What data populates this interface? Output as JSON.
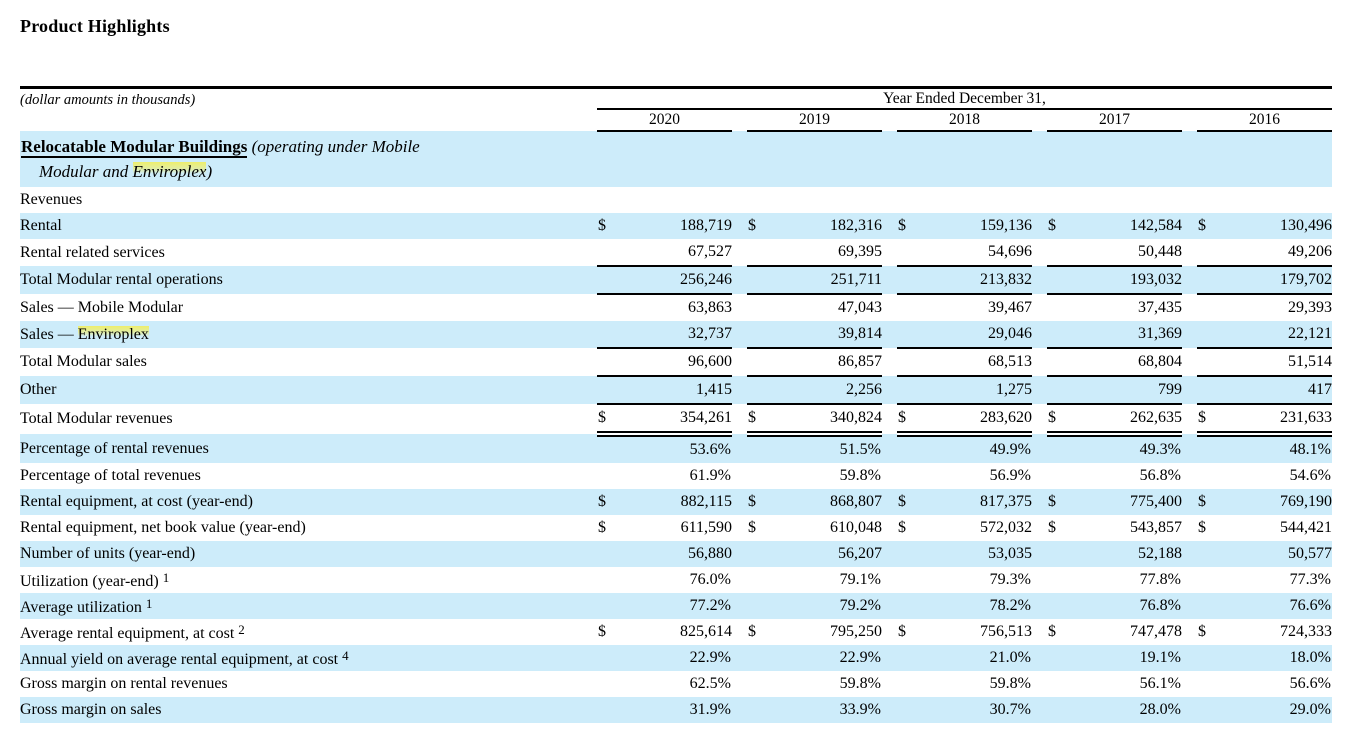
{
  "page": {
    "title": "Product Highlights"
  },
  "colors": {
    "row_shading": "#cdecfa",
    "rule": "#000000",
    "highlight": "#f0ee64"
  },
  "table": {
    "note": "(dollar amounts in thousands)",
    "span_header": "Year Ended December 31,",
    "years": [
      "2020",
      "2019",
      "2018",
      "2017",
      "2016"
    ],
    "section": {
      "bold": "Relocatable Modular Buildings",
      "italic1": " (operating under Mobile",
      "italic2_pre": "Modular and ",
      "italic2_hl": "Enviroplex",
      "italic2_post": ")"
    },
    "rows": [
      {
        "label": "Revenues",
        "indent": 0,
        "shaded": false,
        "values": [
          "",
          "",
          "",
          "",
          ""
        ]
      },
      {
        "label": "Rental",
        "indent": 1,
        "shaded": true,
        "dollar": true,
        "values": [
          "188,719",
          "182,316",
          "159,136",
          "142,584",
          "130,496"
        ]
      },
      {
        "label": "Rental related services",
        "indent": 1,
        "shaded": false,
        "rule": "single",
        "values": [
          "67,527",
          "69,395",
          "54,696",
          "50,448",
          "49,206"
        ]
      },
      {
        "label": "Total Modular rental operations",
        "indent": 2,
        "shaded": true,
        "rule": "single",
        "values": [
          "256,246",
          "251,711",
          "213,832",
          "193,032",
          "179,702"
        ]
      },
      {
        "label": "Sales — Mobile Modular",
        "indent": 1,
        "shaded": false,
        "values": [
          "63,863",
          "47,043",
          "39,467",
          "37,435",
          "29,393"
        ]
      },
      {
        "label_pre": "Sales — ",
        "label_hl": "Enviroplex",
        "indent": 1,
        "shaded": true,
        "rule": "single",
        "values": [
          "32,737",
          "39,814",
          "29,046",
          "31,369",
          "22,121"
        ]
      },
      {
        "label": "Total Modular sales",
        "indent": 2,
        "shaded": false,
        "rule": "single",
        "values": [
          "96,600",
          "86,857",
          "68,513",
          "68,804",
          "51,514"
        ]
      },
      {
        "label": "Other",
        "indent": 1,
        "shaded": true,
        "rule": "single",
        "values": [
          "1,415",
          "2,256",
          "1,275",
          "799",
          "417"
        ]
      },
      {
        "label": "Total Modular revenues",
        "indent": 2,
        "shaded": false,
        "dollar": true,
        "rule": "double",
        "values": [
          "354,261",
          "340,824",
          "283,620",
          "262,635",
          "231,633"
        ]
      },
      {
        "label": "Percentage of rental revenues",
        "indent": 0,
        "shaded": true,
        "values": [
          "53.6%",
          "51.5%",
          "49.9%",
          "49.3%",
          "48.1%"
        ]
      },
      {
        "label": "Percentage of total revenues",
        "indent": 0,
        "shaded": false,
        "values": [
          "61.9%",
          "59.8%",
          "56.9%",
          "56.8%",
          "54.6%"
        ]
      },
      {
        "label": "Rental equipment, at cost (year-end)",
        "indent": 0,
        "shaded": true,
        "dollar": true,
        "values": [
          "882,115",
          "868,807",
          "817,375",
          "775,400",
          "769,190"
        ]
      },
      {
        "label": "Rental equipment, net book value (year-end)",
        "indent": 0,
        "shaded": false,
        "dollar": true,
        "values": [
          "611,590",
          "610,048",
          "572,032",
          "543,857",
          "544,421"
        ]
      },
      {
        "label": "Number of units (year-end)",
        "indent": 0,
        "shaded": true,
        "values": [
          "56,880",
          "56,207",
          "53,035",
          "52,188",
          "50,577"
        ]
      },
      {
        "label": "Utilization (year-end)",
        "sup": "1",
        "indent": 0,
        "shaded": false,
        "values": [
          "76.0%",
          "79.1%",
          "79.3%",
          "77.8%",
          "77.3%"
        ]
      },
      {
        "label": "Average utilization",
        "sup": "1",
        "indent": 0,
        "shaded": true,
        "values": [
          "77.2%",
          "79.2%",
          "78.2%",
          "76.8%",
          "76.6%"
        ]
      },
      {
        "label": "Average rental equipment, at cost",
        "sup": "2",
        "indent": 0,
        "shaded": false,
        "dollar": true,
        "values": [
          "825,614",
          "795,250",
          "756,513",
          "747,478",
          "724,333"
        ]
      },
      {
        "label": "Annual yield on average rental equipment, at cost",
        "sup": "4",
        "indent": 0,
        "shaded": true,
        "values": [
          "22.9%",
          "22.9%",
          "21.0%",
          "19.1%",
          "18.0%"
        ]
      },
      {
        "label": "Gross margin on rental revenues",
        "indent": 0,
        "shaded": false,
        "values": [
          "62.5%",
          "59.8%",
          "59.8%",
          "56.1%",
          "56.6%"
        ]
      },
      {
        "label": "Gross margin on sales",
        "indent": 0,
        "shaded": true,
        "values": [
          "31.9%",
          "33.9%",
          "30.7%",
          "28.0%",
          "29.0%"
        ]
      }
    ]
  }
}
